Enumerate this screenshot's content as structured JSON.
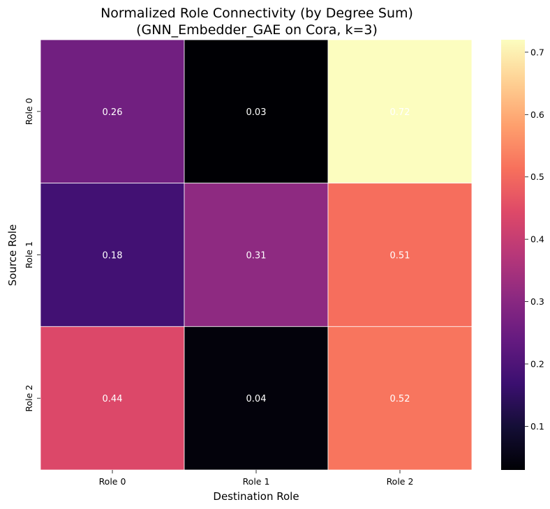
{
  "chart_data": {
    "type": "heatmap",
    "title_lines": [
      "Normalized Role Connectivity (by Degree Sum)",
      "(GNN_Embedder_GAE on Cora, k=3)"
    ],
    "xlabel": "Destination Role",
    "ylabel": "Source Role",
    "x_categories": [
      "Role 0",
      "Role 1",
      "Role 2"
    ],
    "y_categories": [
      "Role 0",
      "Role 1",
      "Role 2"
    ],
    "values": [
      [
        0.26,
        0.03,
        0.72
      ],
      [
        0.18,
        0.31,
        0.51
      ],
      [
        0.44,
        0.04,
        0.52
      ]
    ],
    "value_labels": [
      [
        "0.26",
        "0.03",
        "0.72"
      ],
      [
        "0.18",
        "0.31",
        "0.51"
      ],
      [
        "0.44",
        "0.04",
        "0.52"
      ]
    ],
    "colormap": "magma",
    "colorbar": {
      "vmin": 0.03,
      "vmax": 0.72,
      "ticks": [
        0.1,
        0.2,
        0.3,
        0.4,
        0.5,
        0.6,
        0.7
      ],
      "tick_labels": [
        "0.1",
        "0.2",
        "0.3",
        "0.4",
        "0.5",
        "0.6",
        "0.7"
      ]
    },
    "cell_border_color": "#ffffff",
    "grid": false
  }
}
